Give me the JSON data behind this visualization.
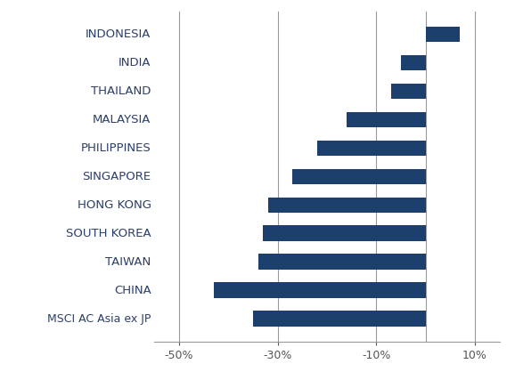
{
  "categories": [
    "MSCI AC Asia ex JP",
    "CHINA",
    "TAIWAN",
    "SOUTH KOREA",
    "HONG KONG",
    "SINGAPORE",
    "PHILIPPINES",
    "MALAYSIA",
    "THAILAND",
    "INDIA",
    "INDONESIA"
  ],
  "values": [
    -35,
    -43,
    -34,
    -33,
    -32,
    -27,
    -22,
    -16,
    -7,
    -5,
    7
  ],
  "bar_color": "#1d3f6e",
  "xlim": [
    -55,
    15
  ],
  "xticks": [
    -50,
    -30,
    -10,
    10
  ],
  "xticklabels": [
    "-50%",
    "-30%",
    "-10%",
    "10%"
  ],
  "label_color": "#2c3e6b",
  "label_color_msci": "#2c3e6b",
  "grid_color": "#999999",
  "background_color": "#ffffff",
  "bar_height": 0.55,
  "label_fontsize": 9.5,
  "tick_fontsize": 9
}
